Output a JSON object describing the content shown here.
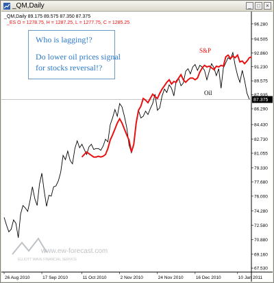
{
  "window": {
    "title": "_QM,Daily",
    "buttons": [
      "minimize-button",
      "maximize-button",
      "close-button"
    ]
  },
  "header": {
    "oil_ohlc": "_QM,Daily  89.175 89.575 87.350 87.375",
    "es_ohlc": "_ES O = 1278.75, H = 1287.25, L = 1277.75, C = 1285.25"
  },
  "annotation": {
    "line1": "Who is lagging!?",
    "line2": "Do lower oil prices signal",
    "line3": "for stocks reversal!?"
  },
  "watermark": {
    "url": "www.ew-forecast.com",
    "company": "ELLIOTT WAVE FINANCIAL SERVICE"
  },
  "colors": {
    "oil_line": "#000000",
    "sp_line": "#e81010",
    "current_price_bg": "#000000",
    "annotation_text": "#2a78c8",
    "annotation_border": "#6a9ac8"
  },
  "chart_data": {
    "type": "line",
    "ylim": [
      67.3,
      97.4
    ],
    "current_price": "87.375",
    "yticks": [
      "96.280",
      "94.505",
      "92.860",
      "91.230",
      "89.575",
      "87.935",
      "86.290",
      "84.430",
      "82.730",
      "81.055",
      "79.330",
      "77.680",
      "76.000",
      "74.280",
      "72.580",
      "70.880",
      "69.160",
      "67.530"
    ],
    "ytick_values": [
      96.28,
      94.505,
      92.86,
      91.23,
      89.575,
      87.935,
      86.29,
      84.43,
      82.73,
      81.055,
      79.33,
      77.68,
      76.0,
      74.28,
      72.58,
      70.88,
      69.16,
      67.53
    ],
    "xticks": [
      "26 Aug 2010",
      "17 Sep 2010",
      "11 Oct 2010",
      "2 Nov 2010",
      "24 Nov 2010",
      "16 Dec 2010",
      "10 Jan 2011"
    ],
    "xtick_idx": [
      0,
      16,
      33,
      49,
      65,
      81,
      99
    ],
    "series": [
      {
        "name": "S&P",
        "values": [
          null,
          null,
          null,
          null,
          null,
          null,
          null,
          null,
          null,
          null,
          null,
          null,
          null,
          null,
          null,
          null,
          null,
          null,
          null,
          null,
          null,
          null,
          null,
          null,
          null,
          null,
          null,
          null,
          null,
          null,
          null,
          null,
          null,
          80.6,
          80.9,
          81.2,
          81.0,
          80.8,
          80.6,
          80.6,
          80.7,
          80.6,
          80.7,
          80.9,
          81.6,
          82.6,
          83.2,
          83.9,
          84.6,
          85.1,
          84.6,
          83.9,
          83.2,
          82.6,
          81.2,
          82.1,
          84.6,
          86.1,
          86.6,
          87.5,
          87.3,
          87.0,
          87.5,
          88.0,
          87.7,
          87.5,
          88.1,
          88.6,
          89.0,
          89.4,
          89.7,
          89.2,
          89.5,
          89.4,
          89.9,
          90.3,
          89.7,
          89.4,
          89.7,
          89.9,
          89.9,
          89.7,
          89.9,
          90.6,
          91.1,
          91.4,
          91.2,
          91.3,
          91.1,
          90.9,
          91.3,
          91.2,
          91.4,
          91.3,
          92.4,
          92.6,
          92.2,
          92.5,
          92.3,
          92.6,
          91.8,
          91.9,
          91.6,
          91.9,
          92.3,
          92.4
        ],
        "label": "S&P"
      },
      {
        "name": "Oil",
        "values": [
          73.5,
          72.6,
          71.8,
          72.1,
          73.2,
          72.8,
          71.1,
          73.9,
          74.9,
          74.6,
          74.2,
          75.5,
          77.1,
          75.7,
          74.9,
          77.4,
          78.7,
          76.6,
          74.8,
          76.1,
          76.0,
          77.1,
          77.2,
          77.8,
          78.8,
          80.8,
          80.3,
          81.3,
          80.2,
          79.8,
          81.6,
          82.5,
          81.7,
          82.1,
          81.5,
          80.9,
          81.8,
          82.1,
          81.5,
          81.6,
          81.6,
          81.4,
          81.9,
          82.7,
          82.4,
          84.4,
          85.2,
          86.2,
          85.4,
          86.9,
          86.5,
          85.4,
          84.1,
          82.0,
          81.1,
          82.0,
          84.8,
          86.1,
          85.2,
          85.4,
          86.0,
          85.6,
          86.3,
          86.9,
          88.0,
          86.1,
          86.4,
          87.8,
          88.6,
          88.2,
          89.1,
          88.7,
          87.8,
          89.6,
          89.9,
          89.0,
          89.3,
          90.7,
          91.0,
          90.4,
          91.2,
          91.5,
          90.8,
          91.4,
          91.2,
          90.8,
          89.7,
          90.7,
          91.6,
          91.1,
          90.2,
          91.0,
          88.7,
          91.1,
          91.7,
          92.3,
          92.1,
          92.9,
          91.4,
          90.2,
          89.4,
          90.8,
          89.6,
          88.1,
          87.4
        ],
        "label": "Oil"
      }
    ]
  }
}
